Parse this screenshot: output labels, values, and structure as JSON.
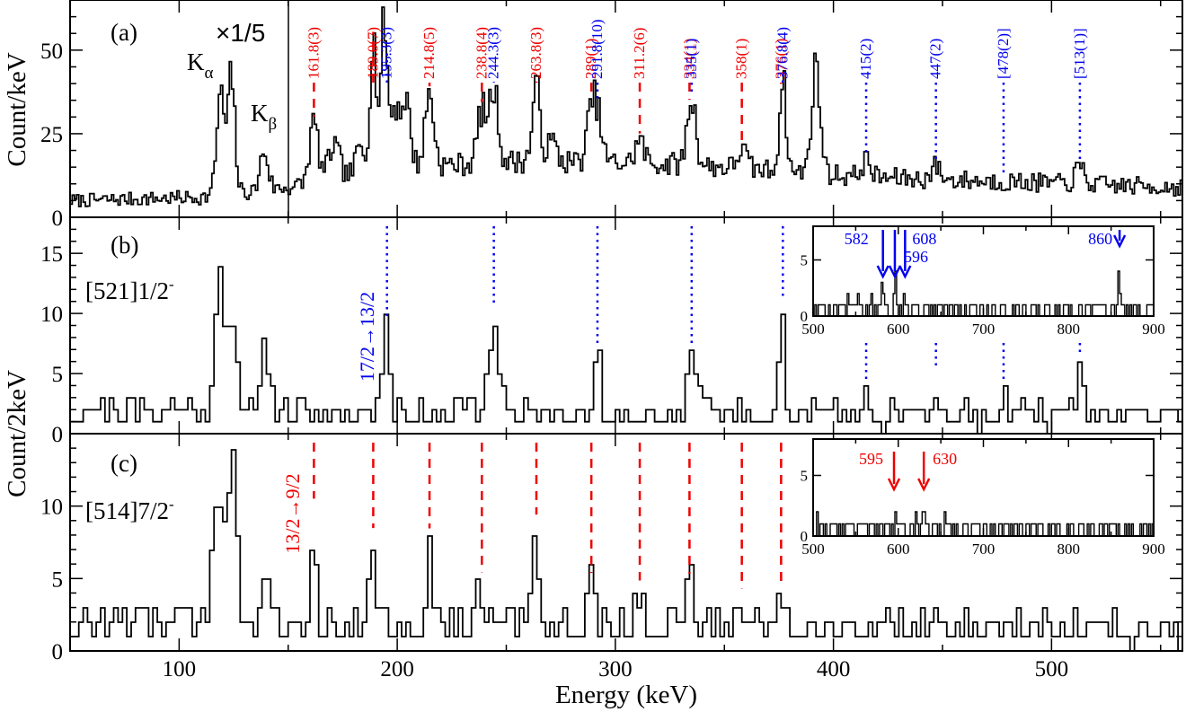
{
  "chart_data": {
    "type": "line",
    "xlabel": "Energy (keV)",
    "x_range": [
      50,
      560
    ],
    "x_ticks": [
      "100",
      "200",
      "300",
      "400",
      "500"
    ],
    "shared_ylabel": "Count/2keV",
    "panels": [
      {
        "id": "a",
        "label": "(a)",
        "ylabel": "Count/keV",
        "ylim": [
          0,
          65
        ],
        "y_ticks": [
          "0",
          "25",
          "50"
        ],
        "annotations": {
          "scale_note": "×1/5",
          "k_alpha": "K",
          "k_alpha_sub": "α",
          "k_beta": "K",
          "k_beta_sub": "β",
          "scale_divider_energy": 150
        },
        "red_peaks": [
          {
            "energy": 161.8,
            "label": "161.8(3)"
          },
          {
            "energy": 189.0,
            "label": "189.0(7)"
          },
          {
            "energy": 214.8,
            "label": "214.8(5)"
          },
          {
            "energy": 238.8,
            "label": "238.8(4)"
          },
          {
            "energy": 263.8,
            "label": "263.8(3)"
          },
          {
            "energy": 289,
            "label": "289(1)"
          },
          {
            "energy": 311.2,
            "label": "311.2(6)"
          },
          {
            "energy": 334,
            "label": "334(1)"
          },
          {
            "energy": 358,
            "label": "358(1)"
          },
          {
            "energy": 376,
            "label": "376(1)"
          }
        ],
        "blue_peaks": [
          {
            "energy": 195.3,
            "label": "195.3(3)"
          },
          {
            "energy": 244.3,
            "label": "244.3(3)"
          },
          {
            "energy": 291.8,
            "label": "291.8(10)"
          },
          {
            "energy": 335,
            "label": "335(1)"
          },
          {
            "energy": 376.8,
            "label": "376.8(4)"
          },
          {
            "energy": 415,
            "label": "415(2)"
          },
          {
            "energy": 447,
            "label": "447(2)"
          },
          {
            "energy": 478,
            "label": "[478(2)]"
          },
          {
            "energy": 513,
            "label": "[513(1)]"
          }
        ],
        "spectrum": {
          "noise_seed": 7,
          "background": [
            [
              50,
              5
            ],
            [
              110,
              6
            ],
            [
              150,
              9
            ],
            [
              200,
              15
            ],
            [
              260,
              17
            ],
            [
              330,
              16
            ],
            [
              420,
              12
            ],
            [
              560,
              9
            ]
          ],
          "peaks": [
            {
              "e": 119,
              "h": 30,
              "w": 1.8
            },
            {
              "e": 124,
              "h": 35,
              "w": 1.6
            },
            {
              "e": 139,
              "h": 12,
              "w": 1.8
            },
            {
              "e": 161.8,
              "h": 18,
              "w": 2
            },
            {
              "e": 171,
              "h": 10,
              "w": 2.5
            },
            {
              "e": 183,
              "h": 8,
              "w": 2
            },
            {
              "e": 189,
              "h": 40,
              "w": 1.5
            },
            {
              "e": 194,
              "h": 44,
              "w": 1.5
            },
            {
              "e": 199,
              "h": 18,
              "w": 2
            },
            {
              "e": 204,
              "h": 20,
              "w": 2
            },
            {
              "e": 214.8,
              "h": 22,
              "w": 2
            },
            {
              "e": 238.8,
              "h": 16,
              "w": 2
            },
            {
              "e": 244.3,
              "h": 22,
              "w": 2
            },
            {
              "e": 263.8,
              "h": 22,
              "w": 1.8
            },
            {
              "e": 271,
              "h": 6,
              "w": 2
            },
            {
              "e": 289,
              "h": 14,
              "w": 2
            },
            {
              "e": 292,
              "h": 12,
              "w": 2
            },
            {
              "e": 311.2,
              "h": 7,
              "w": 2
            },
            {
              "e": 335,
              "h": 20,
              "w": 2
            },
            {
              "e": 358,
              "h": 6,
              "w": 2
            },
            {
              "e": 376.8,
              "h": 28,
              "w": 1.5
            },
            {
              "e": 392,
              "h": 32,
              "w": 2
            },
            {
              "e": 415,
              "h": 5,
              "w": 2
            },
            {
              "e": 447,
              "h": 4,
              "w": 2
            },
            {
              "e": 513,
              "h": 5,
              "w": 2
            }
          ]
        }
      },
      {
        "id": "b",
        "label": "(b)",
        "band": "[521]1/2",
        "band_sup": "-",
        "ylim": [
          0,
          18
        ],
        "y_ticks": [
          "0",
          "5",
          "10",
          "15"
        ],
        "transition_label": "17/2→13/2",
        "gate_energies": [
          195.3,
          244.3,
          291.8,
          335,
          376.8,
          415,
          447,
          478,
          513
        ],
        "spectrum": {
          "noise_seed": 21,
          "background": [
            [
              50,
              2
            ],
            [
              560,
              1.5
            ]
          ],
          "peaks": [
            {
              "e": 118,
              "h": 13,
              "w": 1.5
            },
            {
              "e": 121,
              "h": 8,
              "w": 1.5
            },
            {
              "e": 125,
              "h": 7,
              "w": 1.5
            },
            {
              "e": 140,
              "h": 6,
              "w": 2
            },
            {
              "e": 195.3,
              "h": 7,
              "w": 1.5
            },
            {
              "e": 244.3,
              "h": 8,
              "w": 2
            },
            {
              "e": 291.8,
              "h": 5,
              "w": 1.5
            },
            {
              "e": 335,
              "h": 5,
              "w": 2
            },
            {
              "e": 376.8,
              "h": 9,
              "w": 1.2
            },
            {
              "e": 415,
              "h": 2,
              "w": 1.5
            },
            {
              "e": 447,
              "h": 3,
              "w": 1.5
            },
            {
              "e": 478,
              "h": 2,
              "w": 1.5
            },
            {
              "e": 513,
              "h": 6,
              "w": 1.2
            }
          ]
        },
        "inset": {
          "x_range": [
            500,
            900
          ],
          "x_ticks": [
            "500",
            "600",
            "700",
            "800",
            "900"
          ],
          "ylim": [
            0,
            8
          ],
          "y_ticks": [
            "0",
            "5"
          ],
          "arrows": [
            {
              "energy": 582,
              "label": "582"
            },
            {
              "energy": 596,
              "label": "596"
            },
            {
              "energy": 608,
              "label": "608"
            },
            {
              "energy": 860,
              "label": "860"
            }
          ],
          "spectrum": {
            "noise_seed": 5,
            "background": [
              [
                500,
                0.8
              ],
              [
                900,
                0.6
              ]
            ],
            "peaks": [
              {
                "e": 582,
                "h": 2,
                "w": 1.5
              },
              {
                "e": 596,
                "h": 2.5,
                "w": 1.5
              },
              {
                "e": 608,
                "h": 2,
                "w": 1.5
              },
              {
                "e": 860,
                "h": 4.5,
                "w": 1
              }
            ]
          }
        }
      },
      {
        "id": "c",
        "label": "(c)",
        "band": "[514]7/2",
        "band_sup": "-",
        "ylim": [
          0,
          15
        ],
        "y_ticks": [
          "0",
          "5",
          "10"
        ],
        "transition_label": "13/2→9/2",
        "gate_energies": [
          161.8,
          189.0,
          214.8,
          238.8,
          263.8,
          289,
          311.2,
          334,
          358,
          376
        ],
        "spectrum": {
          "noise_seed": 33,
          "background": [
            [
              50,
              2
            ],
            [
              560,
              1.5
            ]
          ],
          "peaks": [
            {
              "e": 116,
              "h": 9,
              "w": 1.5
            },
            {
              "e": 120,
              "h": 11,
              "w": 1.5
            },
            {
              "e": 125,
              "h": 13,
              "w": 1.5
            },
            {
              "e": 140,
              "h": 6,
              "w": 2
            },
            {
              "e": 161.8,
              "h": 8,
              "w": 1.2
            },
            {
              "e": 189,
              "h": 6,
              "w": 1.5
            },
            {
              "e": 214.8,
              "h": 6,
              "w": 1.5
            },
            {
              "e": 238.8,
              "h": 3,
              "w": 1.5
            },
            {
              "e": 263.8,
              "h": 7,
              "w": 1.5
            },
            {
              "e": 289,
              "h": 3,
              "w": 1.5
            },
            {
              "e": 311.2,
              "h": 2.5,
              "w": 1.5
            },
            {
              "e": 334,
              "h": 3,
              "w": 1.5
            },
            {
              "e": 358,
              "h": 2,
              "w": 1.5
            },
            {
              "e": 376,
              "h": 2.5,
              "w": 1.5
            }
          ]
        },
        "inset": {
          "x_range": [
            500,
            900
          ],
          "x_ticks": [
            "500",
            "600",
            "700",
            "800",
            "900"
          ],
          "ylim": [
            0,
            8
          ],
          "y_ticks": [
            "0",
            "5"
          ],
          "arrows": [
            {
              "energy": 595,
              "label": "595"
            },
            {
              "energy": 630,
              "label": "630"
            }
          ],
          "spectrum": {
            "noise_seed": 9,
            "background": [
              [
                500,
                0.8
              ],
              [
                900,
                0.7
              ]
            ],
            "peaks": [
              {
                "e": 630,
                "h": 3,
                "w": 1
              }
            ]
          }
        }
      }
    ]
  },
  "colors": {
    "red": "#ee0000",
    "blue": "#0000ee",
    "black": "#000000"
  }
}
